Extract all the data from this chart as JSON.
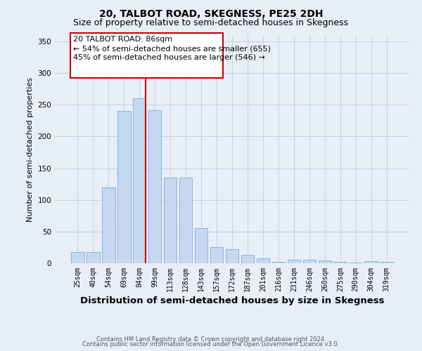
{
  "title": "20, TALBOT ROAD, SKEGNESS, PE25 2DH",
  "subtitle": "Size of property relative to semi-detached houses in Skegness",
  "xlabel": "Distribution of semi-detached houses by size in Skegness",
  "ylabel": "Number of semi-detached properties",
  "footer_line1": "Contains HM Land Registry data © Crown copyright and database right 2024.",
  "footer_line2": "Contains public sector information licensed under the Open Government Licence v3.0.",
  "categories": [
    "25sqm",
    "40sqm",
    "54sqm",
    "69sqm",
    "84sqm",
    "99sqm",
    "113sqm",
    "128sqm",
    "143sqm",
    "157sqm",
    "172sqm",
    "187sqm",
    "201sqm",
    "216sqm",
    "231sqm",
    "246sqm",
    "260sqm",
    "275sqm",
    "290sqm",
    "304sqm",
    "319sqm"
  ],
  "values": [
    18,
    18,
    120,
    240,
    260,
    242,
    135,
    135,
    55,
    25,
    22,
    13,
    8,
    2,
    5,
    5,
    4,
    2,
    1,
    3,
    2
  ],
  "bar_color": "#c5d8ef",
  "bar_edge_color": "#7aadd4",
  "highlight_line_index": 4,
  "highlight_color": "#cc0000",
  "box_text_line1": "20 TALBOT ROAD: 86sqm",
  "box_text_line2": "← 54% of semi-detached houses are smaller (655)",
  "box_text_line3": "45% of semi-detached houses are larger (546) →",
  "box_edge_color": "#cc0000",
  "box_fill": "#ffffff",
  "ylim": [
    0,
    360
  ],
  "yticks": [
    0,
    50,
    100,
    150,
    200,
    250,
    300,
    350
  ],
  "grid_color": "#c8cfe0",
  "bg_color": "#e8eef8",
  "plot_bg_color": "#e8eef8",
  "title_fontsize": 10,
  "subtitle_fontsize": 9,
  "xlabel_fontsize": 9.5,
  "ylabel_fontsize": 8,
  "tick_fontsize": 7,
  "footer_fontsize": 6,
  "annotation_fontsize": 8
}
